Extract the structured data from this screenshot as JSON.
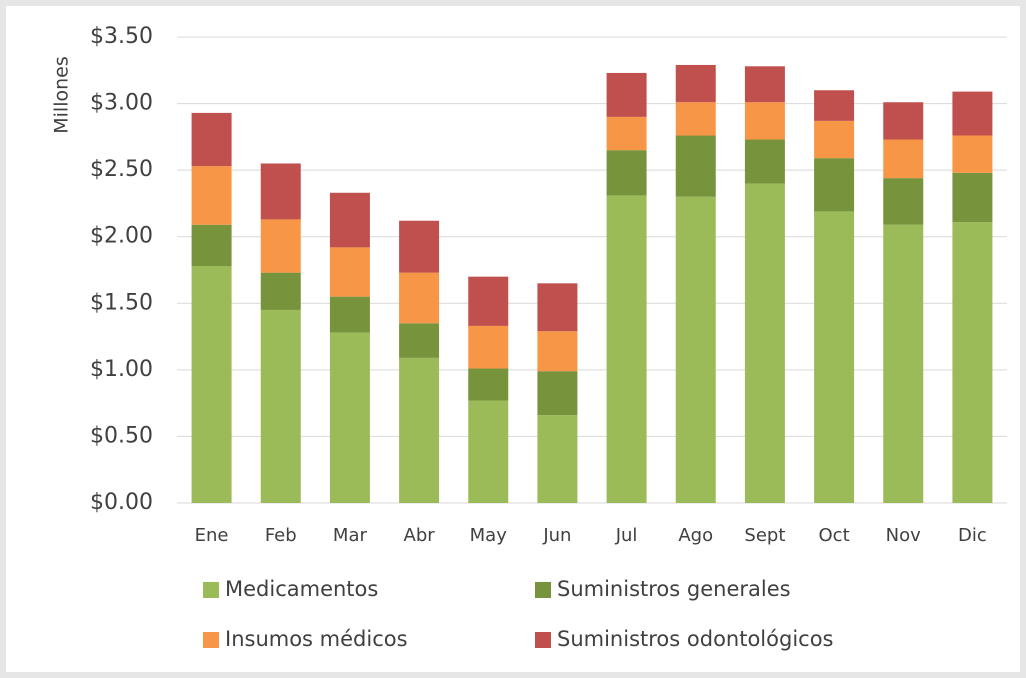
{
  "chart_data": {
    "type": "stacked_bar",
    "y_axis_label": "Millones",
    "categories": [
      "Ene",
      "Feb",
      "Mar",
      "Abr",
      "May",
      "Jun",
      "Jul",
      "Ago",
      "Sept",
      "Oct",
      "Nov",
      "Dic"
    ],
    "series": [
      {
        "name": "Medicamentos",
        "color": "#9bbb59",
        "values": [
          1.78,
          1.45,
          1.28,
          1.09,
          0.77,
          0.66,
          2.31,
          2.3,
          2.4,
          2.19,
          2.09,
          2.11
        ]
      },
      {
        "name": "Suministros generales",
        "color": "#77933c",
        "values": [
          0.31,
          0.28,
          0.27,
          0.26,
          0.24,
          0.33,
          0.34,
          0.46,
          0.33,
          0.4,
          0.35,
          0.37
        ]
      },
      {
        "name": "Insumos médicos",
        "color": "#f79646",
        "values": [
          0.44,
          0.4,
          0.37,
          0.38,
          0.32,
          0.3,
          0.25,
          0.25,
          0.28,
          0.28,
          0.29,
          0.28
        ]
      },
      {
        "name": "Suministros odontológicos",
        "color": "#c0504d",
        "values": [
          0.4,
          0.42,
          0.41,
          0.39,
          0.37,
          0.36,
          0.33,
          0.28,
          0.27,
          0.23,
          0.28,
          0.33
        ]
      }
    ],
    "ylim": [
      0,
      3.5
    ],
    "yticks": [
      {
        "value": 0,
        "label": "$0.00"
      },
      {
        "value": 0.5,
        "label": "$0.50"
      },
      {
        "value": 1,
        "label": "$1.00"
      },
      {
        "value": 1.5,
        "label": "$1.50"
      },
      {
        "value": 2,
        "label": "$2.00"
      },
      {
        "value": 2.5,
        "label": "$2.50"
      },
      {
        "value": 3,
        "label": "$3.00"
      },
      {
        "value": 3.5,
        "label": "$3.50"
      }
    ],
    "grid": true,
    "legend": "bottom"
  }
}
